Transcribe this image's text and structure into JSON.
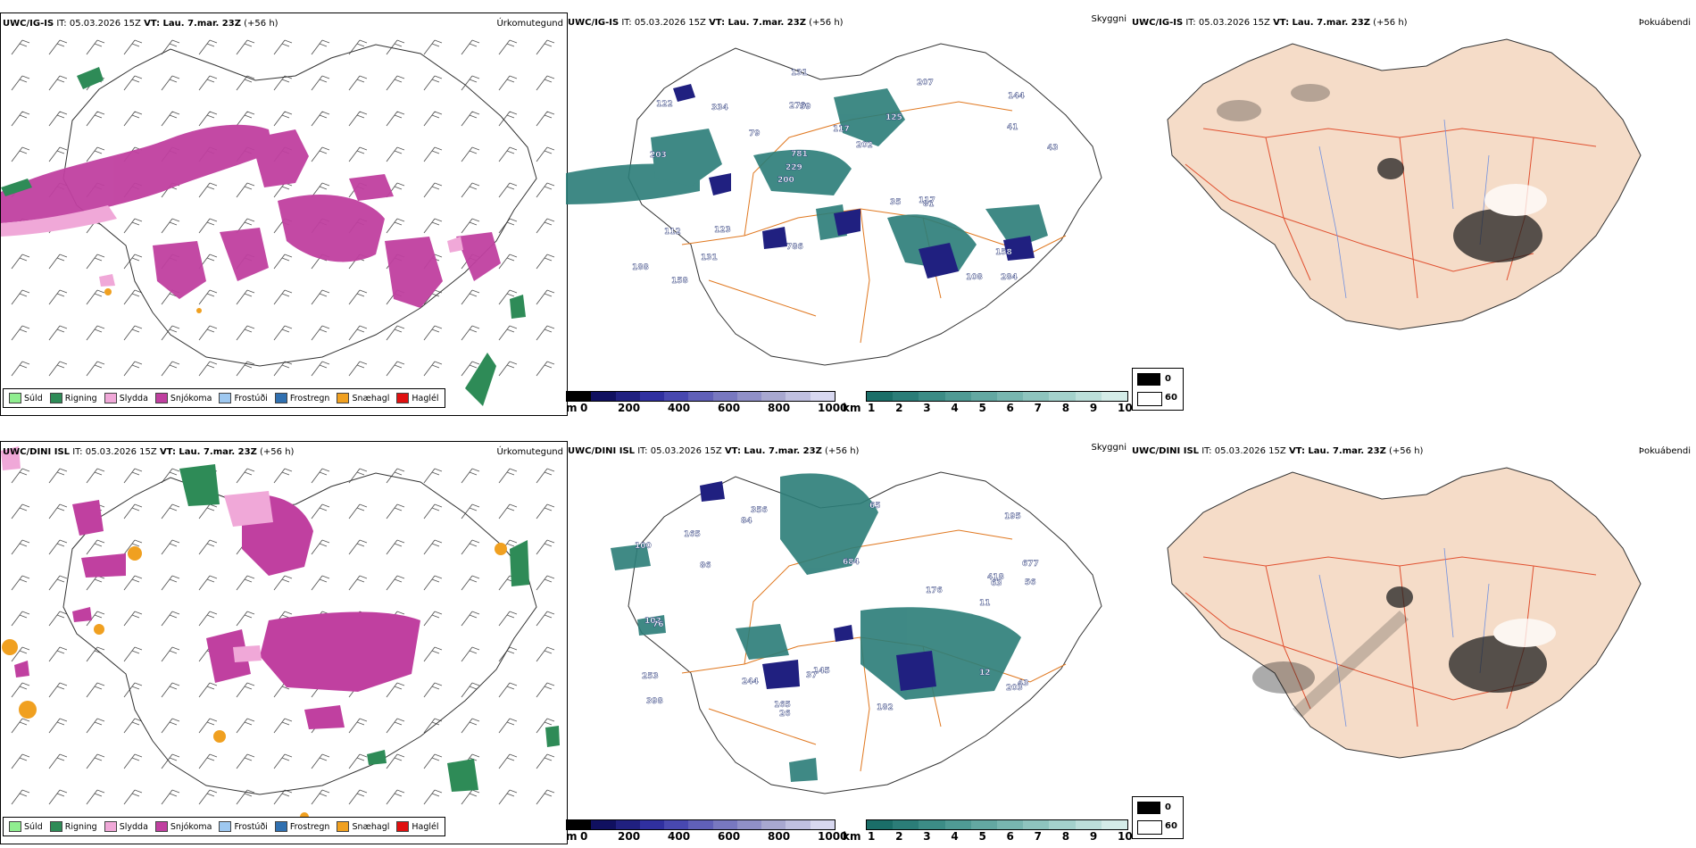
{
  "rows": [
    {
      "model": "UWC/IG-IS",
      "it": "IT: 05.03.2026 15Z",
      "vt": "VT: Lau. 7.mar. 23Z",
      "lead": "(+56 h)"
    },
    {
      "model": "UWC/DINI ISL",
      "it": "IT: 05.03.2026 15Z",
      "vt": "VT: Lau. 7.mar. 23Z",
      "lead": "(+56 h)"
    }
  ],
  "panel_titles": {
    "precip": "Úrkomutegund",
    "cloud": "Skyggni",
    "fog": "Þokuábendi"
  },
  "precip_legend": [
    {
      "label": "Súld",
      "color": "#90ee90"
    },
    {
      "label": "Rigning",
      "color": "#2e8b57"
    },
    {
      "label": "Slydda",
      "color": "#f0a8d8"
    },
    {
      "label": "Snjókoma",
      "color": "#c040a0"
    },
    {
      "label": "Frostúði",
      "color": "#9ec8f0"
    },
    {
      "label": "Frostregn",
      "color": "#3070b0"
    },
    {
      "label": "Snæhagl",
      "color": "#f0a020"
    },
    {
      "label": "Haglél",
      "color": "#e01010"
    }
  ],
  "ceiling_bar": {
    "unit": "m",
    "ticks": [
      "0",
      "200",
      "400",
      "600",
      "800",
      "1000"
    ],
    "colors": [
      "#000000",
      "#101060",
      "#202080",
      "#3030a0",
      "#4848b0",
      "#6060b8",
      "#7878c0",
      "#9090c8",
      "#a8a8d0",
      "#c0c0e0",
      "#d8d8f0"
    ]
  },
  "visibility_bar": {
    "unit": "km",
    "ticks": [
      "1",
      "2",
      "3",
      "4",
      "5",
      "6",
      "7",
      "8",
      "9",
      "10"
    ],
    "colors": [
      "#1a6e68",
      "#2b7d78",
      "#3c8c86",
      "#4f9a94",
      "#63a8a2",
      "#78b6b0",
      "#8ec4be",
      "#a4d2cc",
      "#bcdfda",
      "#d4ece8"
    ]
  },
  "fog_legend": {
    "low": "0",
    "high": "60"
  },
  "cloud_labels": [
    {
      "row": 0,
      "values": [
        "284",
        "203",
        "144",
        "200",
        "125",
        "158",
        "270",
        "117",
        "112",
        "79",
        "188",
        "131",
        "59",
        "202",
        "81",
        "122",
        "131",
        "43",
        "35",
        "41",
        "229",
        "786",
        "781",
        "334",
        "207",
        "123",
        "108",
        "158",
        "117"
      ]
    },
    {
      "row": 1,
      "values": [
        "12",
        "677",
        "43",
        "684",
        "398",
        "356",
        "418",
        "244",
        "195",
        "86",
        "56",
        "100",
        "11",
        "26",
        "253",
        "165",
        "203",
        "84",
        "145",
        "63",
        "102",
        "76",
        "182",
        "176",
        "165",
        "37",
        "65"
      ]
    }
  ]
}
